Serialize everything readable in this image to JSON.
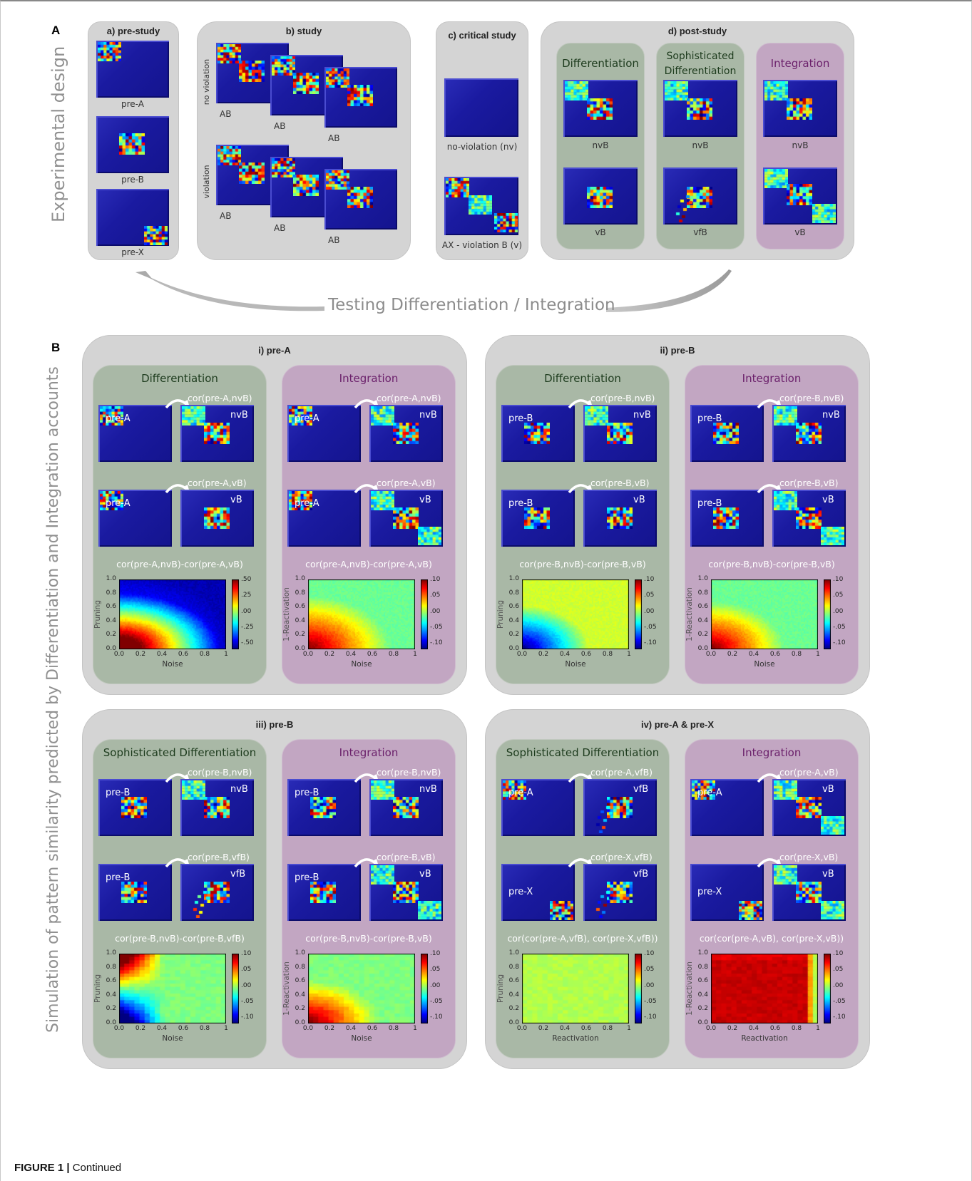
{
  "panelA": {
    "letter": "A",
    "side": "Experimental design",
    "pre": {
      "title": "a) pre-study",
      "labels": [
        "pre-A",
        "pre-B",
        "pre-X"
      ]
    },
    "study": {
      "title": "b) study",
      "nv_side": "no violation",
      "v_side": "violation",
      "ab": "AB"
    },
    "critical": {
      "title": "c) critical study",
      "nv": "no-violation (nv)",
      "v": "AX - violation B (v)"
    },
    "post": {
      "title": "d) post-study",
      "diff": "Differentiation",
      "soph": "Sophisticated Differentiation",
      "soph_line1": "Sophisticated",
      "soph_line2": "Differentiation",
      "integ": "Integration",
      "nvB": "nvB",
      "vB": "vB",
      "vfB": "vfB"
    },
    "arrow_text": "Testing Differentiation / Integration"
  },
  "panelB": {
    "letter": "B",
    "side": "Simulation of pattern similarity predicted by Differentiation and Integration accounts",
    "boxes": [
      {
        "title": "i) pre-A",
        "left": {
          "head": "Differentiation",
          "rows": [
            {
              "pre": "pre-A",
              "cor": "cor(pre-A,nvB)",
              "post": "nvB"
            },
            {
              "pre": "pre-A",
              "cor": "cor(pre-A,vB)",
              "post": "vB"
            }
          ],
          "map_title": "cor(pre-A,nvB)-cor(pre-A,vB)",
          "ylabel": "Pruning",
          "xlabel": "Noise"
        },
        "right": {
          "head": "Integration",
          "rows": [
            {
              "pre": "pre-A",
              "cor": "cor(pre-A,nvB)",
              "post": "nvB"
            },
            {
              "pre": "pre-A",
              "cor": "cor(pre-A,vB)",
              "post": "vB"
            }
          ],
          "map_title": "cor(pre-A,nvB)-cor(pre-A,vB)",
          "ylabel": "1-Reactivation",
          "xlabel": "Noise"
        }
      },
      {
        "title": "ii) pre-B",
        "left": {
          "head": "Differentiation",
          "rows": [
            {
              "pre": "pre-B",
              "cor": "cor(pre-B,nvB)",
              "post": "nvB"
            },
            {
              "pre": "pre-B",
              "cor": "cor(pre-B,vB)",
              "post": "vB"
            }
          ],
          "map_title": "cor(pre-B,nvB)-cor(pre-B,vB)",
          "ylabel": "Pruning",
          "xlabel": "Noise"
        },
        "right": {
          "head": "Integration",
          "rows": [
            {
              "pre": "pre-B",
              "cor": "cor(pre-B,nvB)",
              "post": "nvB"
            },
            {
              "pre": "pre-B",
              "cor": "cor(pre-B,vB)",
              "post": "vB"
            }
          ],
          "map_title": "cor(pre-B,nvB)-cor(pre-B,vB)",
          "ylabel": "1-Reactivation",
          "xlabel": "Noise"
        }
      },
      {
        "title": "iii) pre-B",
        "left": {
          "head": "Sophisticated Differentiation",
          "rows": [
            {
              "pre": "pre-B",
              "cor": "cor(pre-B,nvB)",
              "post": "nvB"
            },
            {
              "pre": "pre-B",
              "cor": "cor(pre-B,vfB)",
              "post": "vfB"
            }
          ],
          "map_title": "cor(pre-B,nvB)-cor(pre-B,vfB)",
          "ylabel": "Pruning",
          "xlabel": "Noise"
        },
        "right": {
          "head": "Integration",
          "rows": [
            {
              "pre": "pre-B",
              "cor": "cor(pre-B,nvB)",
              "post": "nvB"
            },
            {
              "pre": "pre-B",
              "cor": "cor(pre-B,vB)",
              "post": "vB"
            }
          ],
          "map_title": "cor(pre-B,nvB)-cor(pre-B,vB)",
          "ylabel": "1-Reactivation",
          "xlabel": "Noise"
        }
      },
      {
        "title": "iv) pre-A & pre-X",
        "left": {
          "head": "Sophisticated Differentiation",
          "rows": [
            {
              "pre": "pre-A",
              "cor": "cor(pre-A,vfB)",
              "post": "vfB"
            },
            {
              "pre": "pre-X",
              "cor": "cor(pre-X,vfB)",
              "post": "vfB"
            }
          ],
          "map_title": "cor(cor(pre-A,vfB), cor(pre-X,vfB))",
          "ylabel": "Pruning",
          "xlabel": "Reactivation"
        },
        "right": {
          "head": "Integration",
          "rows": [
            {
              "pre": "pre-A",
              "cor": "cor(pre-A,vB)",
              "post": "vB"
            },
            {
              "pre": "pre-X",
              "cor": "cor(pre-X,vB)",
              "post": "vB"
            }
          ],
          "map_title": "cor(cor(pre-A,vB), cor(pre-X,vB))",
          "ylabel": "1-Reactivation",
          "xlabel": "Reactivation"
        }
      }
    ],
    "axis_ticks": {
      "y": [
        "1.0",
        "0.8",
        "0.6",
        "0.4",
        "0.2",
        "0.0"
      ],
      "x": [
        "0.0",
        "0.2",
        "0.4",
        "0.6",
        "0.8",
        "1"
      ]
    },
    "colorbar": {
      "wide": [
        ".50",
        ".25",
        ".00",
        "-.25",
        "-.50"
      ],
      "narrow": [
        ".10",
        ".05",
        ".00",
        "-.05",
        "-.10"
      ]
    }
  },
  "colors": {
    "panel_gray": "#d4d4d4",
    "green_panel": "#a9b8a6",
    "purple_panel": "#c2a6c2",
    "screen_blue": "#1a1aa0"
  },
  "caption": {
    "bold": "FIGURE 1 |",
    "text": " Continued"
  }
}
